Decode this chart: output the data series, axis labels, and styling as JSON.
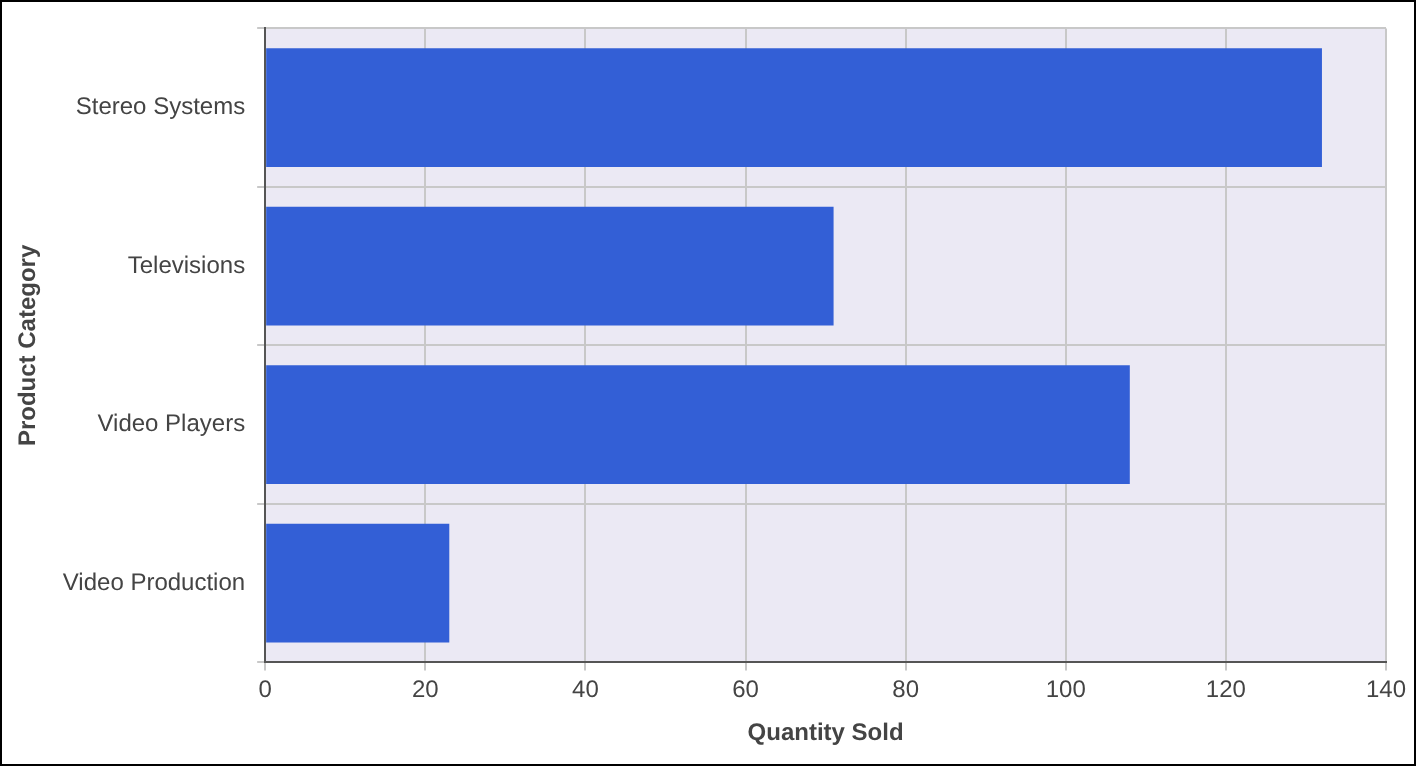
{
  "chart_data": {
    "type": "bar",
    "orientation": "horizontal",
    "xlabel": "Quantity Sold",
    "ylabel": "Product Category",
    "categories": [
      "Stereo Systems",
      "Televisions",
      "Video Players",
      "Video Production"
    ],
    "values": [
      132,
      71,
      108,
      23
    ],
    "color": "#335fd6",
    "xlim": [
      0,
      140
    ],
    "xticks": [
      0,
      20,
      40,
      60,
      80,
      100,
      120,
      140
    ],
    "grid": true,
    "legend": false
  }
}
